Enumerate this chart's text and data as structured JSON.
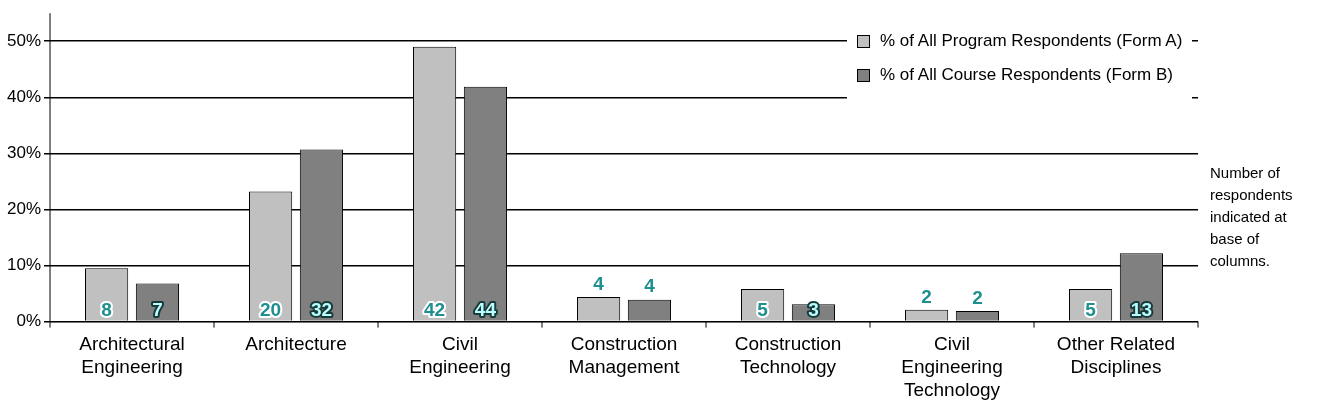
{
  "chart_data": {
    "type": "bar",
    "categories": [
      "Architectural Engineering",
      "Architecture",
      "Civil Engineering",
      "Construction Management",
      "Construction Technology",
      "Civil Engineering Technology",
      "Other Related Disciplines"
    ],
    "series": [
      {
        "name": "% of All Program Respondents (Form A)",
        "color": "#c0c0c0",
        "values": [
          9.5,
          23.2,
          49,
          4.4,
          5.8,
          2.1,
          5.8
        ]
      },
      {
        "name": "% of All Course Respondents (Form B)",
        "color": "#808080",
        "values": [
          6.8,
          30.7,
          41.9,
          3.9,
          3.1,
          1.9,
          12.2
        ]
      }
    ],
    "ylim": [
      0,
      55
    ],
    "yticks": [
      {
        "value": 0,
        "label": "0%"
      },
      {
        "value": 10,
        "label": "10%"
      },
      {
        "value": 20,
        "label": "20%"
      },
      {
        "value": 30,
        "label": "30%"
      },
      {
        "value": 40,
        "label": "40%"
      },
      {
        "value": 50,
        "label": "50%"
      }
    ],
    "grid": "y",
    "legend": "top right",
    "annotations": [
      "Number of respondents indicated at base of columns.",
      {
        "text": "8",
        "x": "Architectural Engineering",
        "y": 0
      },
      {
        "text": "7",
        "x": "Architectural Engineering",
        "y": 0
      },
      {
        "text": "20",
        "x": "Architecture",
        "y": 0
      },
      {
        "text": "32",
        "x": "Architecture",
        "y": 0
      },
      {
        "text": "42",
        "x": "Civil Engineering",
        "y": 0
      },
      {
        "text": "44",
        "x": "Civil Engineering",
        "y": 0
      },
      {
        "text": "4",
        "x": "Construction Management",
        "y": 4.4
      },
      {
        "text": "4",
        "x": "Construction Management",
        "y": 3.9
      },
      {
        "text": "5",
        "x": "Construction Technology",
        "y": 0
      },
      {
        "text": "3",
        "x": "Construction Technology",
        "y": 0
      },
      {
        "text": "2",
        "x": "Civil Engineering Technology",
        "y": 2.1
      },
      {
        "text": "2",
        "x": "Civil Engineering Technology",
        "y": 1.9
      },
      {
        "text": "5",
        "x": "Other Related Disciplines",
        "y": 0
      },
      {
        "text": "13",
        "x": "Other Related Disciplines",
        "y": 0
      }
    ]
  }
}
